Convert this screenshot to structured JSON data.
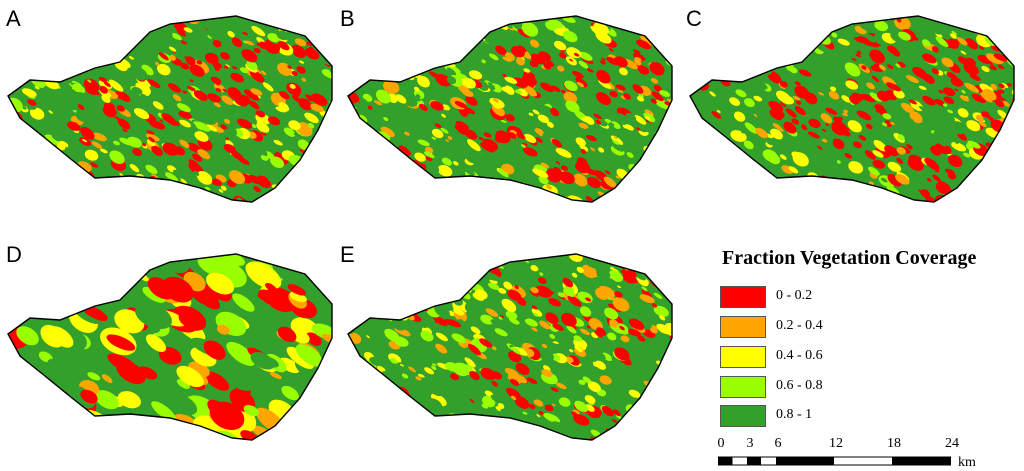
{
  "figure": {
    "panels": [
      {
        "id": "A",
        "label": "A"
      },
      {
        "id": "B",
        "label": "B"
      },
      {
        "id": "C",
        "label": "C"
      },
      {
        "id": "D",
        "label": "D"
      },
      {
        "id": "E",
        "label": "E"
      }
    ]
  },
  "legend": {
    "title": "Fraction Vegetation Coverage",
    "classes": [
      {
        "label": "0 - 0.2",
        "color": "#ff0000"
      },
      {
        "label": "0.2 - 0.4",
        "color": "#ffa500"
      },
      {
        "label": "0.4 - 0.6",
        "color": "#ffff00"
      },
      {
        "label": "0.6 - 0.8",
        "color": "#99ff00"
      },
      {
        "label": "0.8 - 1",
        "color": "#33a02c"
      }
    ]
  },
  "scale_bar": {
    "ticks": [
      "0",
      "3",
      "6",
      "12",
      "18",
      "24"
    ],
    "unit": "km"
  }
}
